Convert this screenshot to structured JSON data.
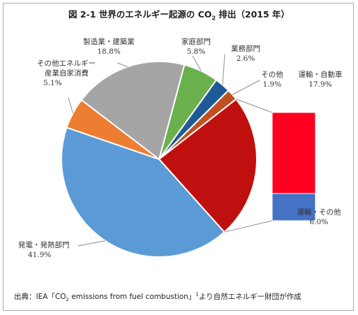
{
  "title": {
    "prefix": "図 2-1  世界のエネルギー起源の CO",
    "sub": "2",
    "suffix": " 排出（2015 年）"
  },
  "source": {
    "prefix": "出典：IEA「CO",
    "sub": "2",
    "mid": " emissions from fuel combustion」",
    "sup": "1",
    "suffix": "より自然エネルギー財団が作成"
  },
  "chart_data": {
    "type": "pie",
    "title": "世界のエネルギー起源の CO2 排出（2015 年）",
    "slices": [
      {
        "name": "家庭部門",
        "value": 5.8,
        "label": "5.8%",
        "color": "#6ab04c"
      },
      {
        "name": "業務部門",
        "value": 2.6,
        "label": "2.6%",
        "color": "#1f5a96"
      },
      {
        "name": "その他",
        "value": 1.9,
        "label": "1.9%",
        "color": "#c0501f"
      },
      {
        "name": "運輸",
        "value": 23.9,
        "label": "",
        "color": "#c00f0f"
      },
      {
        "name": "発電・発熱部門",
        "value": 41.9,
        "label": "41.9%",
        "color": "#5b9bd5"
      },
      {
        "name": "その他エネルギー産業自家消費",
        "value": 5.1,
        "label": "5.1%",
        "color": "#ed7d31"
      },
      {
        "name": "製造業・建築業",
        "value": 18.8,
        "label": "18.8%",
        "color": "#a5a5a5"
      }
    ],
    "breakdown": {
      "of": "運輸",
      "parts": [
        {
          "name": "運輸・自動車",
          "value": 17.9,
          "label": "17.9%",
          "color": "#ff0020"
        },
        {
          "name": "運輸・その他",
          "value": 6.0,
          "label": "6.0%",
          "color": "#4472c4"
        }
      ]
    }
  },
  "labels": {
    "katei": {
      "name": "家庭部門",
      "value": "5.8%"
    },
    "gyomu": {
      "name": "業務部門",
      "value": "2.6%"
    },
    "sonota": {
      "name": "その他",
      "value": "1.9%"
    },
    "seizo": {
      "name": "製造業・建築業",
      "value": "18.8%"
    },
    "energy": {
      "line1": "その他エネルギー",
      "line2": "産業自家消費",
      "value": "5.1%"
    },
    "hatsuden": {
      "name": "発電・発熱部門",
      "value": "41.9%"
    },
    "jidosha": {
      "name": "運輸・自動車",
      "value": "17.9%"
    },
    "unyu_other": {
      "name": "運輸・その他",
      "value": "6.0%"
    }
  }
}
